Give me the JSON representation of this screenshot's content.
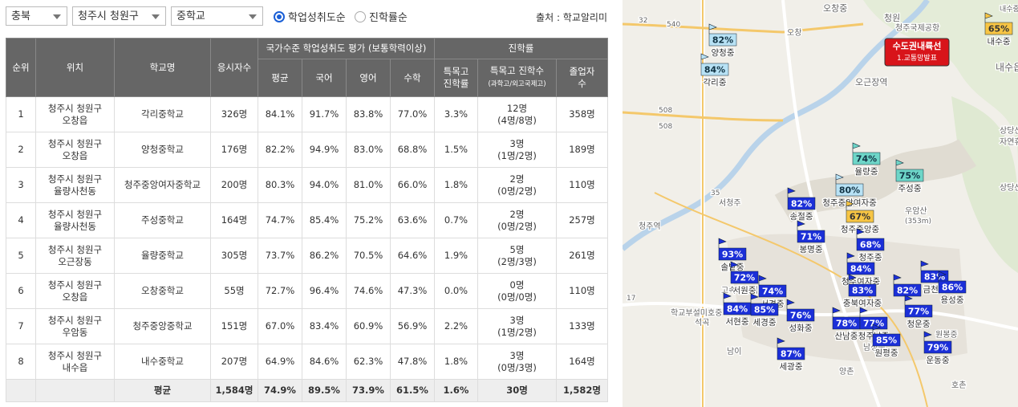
{
  "filters": {
    "region": "충북",
    "district": "청주시 청원구",
    "level": "중학교"
  },
  "sort_options": [
    {
      "label": "학업성취도순",
      "selected": true
    },
    {
      "label": "진학률순",
      "selected": false
    }
  ],
  "source": "출처 : 학교알리미",
  "table": {
    "head": {
      "rank": "순위",
      "location": "위치",
      "school": "학교명",
      "takers": "응시자수",
      "group_achievement": "국가수준 학업성취도 평가 (보통학력이상)",
      "avg": "평균",
      "korean": "국어",
      "english": "영어",
      "math": "수학",
      "group_admission": "진학률",
      "special_rate": "특목고\n진학률",
      "special_count": "특목고 진학수",
      "special_count_note": "(과학고/외고국제고)",
      "graduates": "졸업자\n수"
    },
    "rows": [
      [
        "1",
        "청주시 청원구\n오창읍",
        "각리중학교",
        "326명",
        "84.1%",
        "91.7%",
        "83.8%",
        "77.0%",
        "3.3%",
        "12명\n(4명/8명)",
        "358명"
      ],
      [
        "2",
        "청주시 청원구\n오창읍",
        "양청중학교",
        "176명",
        "82.2%",
        "94.9%",
        "83.0%",
        "68.8%",
        "1.5%",
        "3명\n(1명/2명)",
        "189명"
      ],
      [
        "3",
        "청주시 청원구\n율량사천동",
        "청주중앙여자중학교",
        "200명",
        "80.3%",
        "94.0%",
        "81.0%",
        "66.0%",
        "1.8%",
        "2명\n(0명/2명)",
        "110명"
      ],
      [
        "4",
        "청주시 청원구\n율량사천동",
        "주성중학교",
        "164명",
        "74.7%",
        "85.4%",
        "75.2%",
        "63.6%",
        "0.7%",
        "2명\n(0명/2명)",
        "257명"
      ],
      [
        "5",
        "청주시 청원구\n오근장동",
        "율량중학교",
        "305명",
        "73.7%",
        "86.2%",
        "70.5%",
        "64.6%",
        "1.9%",
        "5명\n(2명/3명)",
        "261명"
      ],
      [
        "6",
        "청주시 청원구\n오창읍",
        "오창중학교",
        "55명",
        "72.7%",
        "96.4%",
        "74.6%",
        "47.3%",
        "0.0%",
        "0명\n(0명/0명)",
        "110명"
      ],
      [
        "7",
        "청주시 청원구\n우암동",
        "청주중앙중학교",
        "151명",
        "67.0%",
        "83.4%",
        "60.9%",
        "56.9%",
        "2.2%",
        "3명\n(1명/2명)",
        "133명"
      ],
      [
        "8",
        "청주시 청원구\n내수읍",
        "내수중학교",
        "207명",
        "64.9%",
        "84.6%",
        "62.3%",
        "47.8%",
        "1.8%",
        "3명\n(0명/3명)",
        "164명"
      ]
    ],
    "footer": {
      "label": "평균",
      "values": [
        "1,584명",
        "74.9%",
        "89.5%",
        "73.9%",
        "61.5%",
        "1.6%",
        "30명",
        "1,582명"
      ]
    }
  },
  "map": {
    "notice": {
      "line1": "수도권내륙선",
      "line2": "1.교통망발표"
    },
    "markers": [
      {
        "pct": "82%",
        "name": "양청중",
        "style": "light"
      },
      {
        "pct": "84%",
        "name": "각리중",
        "style": "light"
      },
      {
        "pct": "65%",
        "name": "내수중",
        "style": "yellow"
      },
      {
        "pct": "74%",
        "name": "율량중",
        "style": "teal"
      },
      {
        "pct": "75%",
        "name": "주성중",
        "style": "teal"
      },
      {
        "pct": "80%",
        "name": "청주중앙여자중",
        "style": "light"
      },
      {
        "pct": "67%",
        "name": "청주중앙중",
        "style": "yellow"
      },
      {
        "pct": "82%",
        "name": "송절중",
        "style": "blue"
      },
      {
        "pct": "71%",
        "name": "봉명중",
        "style": "blue"
      },
      {
        "pct": "68%",
        "name": "청주중",
        "style": "blue"
      },
      {
        "pct": "93%",
        "name": "솔밭중",
        "style": "blue"
      },
      {
        "pct": "72%",
        "name": "서원중",
        "style": "blue"
      },
      {
        "pct": "74%",
        "name": "서경중",
        "style": "blue"
      },
      {
        "pct": "84%",
        "name": "서현중",
        "style": "blue"
      },
      {
        "pct": "85%",
        "name": "세경중",
        "style": "blue"
      },
      {
        "pct": "76%",
        "name": "성화중",
        "style": "blue"
      },
      {
        "pct": "84%",
        "name": "청주여자중",
        "style": "blue"
      },
      {
        "pct": "83%",
        "name": "충북여자중",
        "style": "blue"
      },
      {
        "pct": "82%",
        "name": "",
        "style": "blue"
      },
      {
        "pct": "83%",
        "name": "금천중",
        "style": "blue"
      },
      {
        "pct": "86%",
        "name": "용성중",
        "style": "blue"
      },
      {
        "pct": "77%",
        "name": "청운중",
        "style": "blue"
      },
      {
        "pct": "78%",
        "name": "산남중",
        "style": "blue"
      },
      {
        "pct": "77%",
        "name": "청주남중",
        "style": "blue"
      },
      {
        "pct": "85%",
        "name": "원평중",
        "style": "blue"
      },
      {
        "pct": "79%",
        "name": "운동중",
        "style": "blue"
      },
      {
        "pct": "87%",
        "name": "세광중",
        "style": "blue"
      }
    ],
    "places": [
      "오창중",
      "청원",
      "청주국제공항",
      "오창",
      "오근장역",
      "내수중",
      "내수읍",
      "상당산성",
      "자연휴양림",
      "상당산성",
      "서청주",
      "청주역",
      "우암산",
      "(353m)",
      "고속버스터미널",
      "학교부설미호중",
      "석곡",
      "남이",
      "양촌",
      "호촌",
      "남성중",
      "원봉중",
      "540",
      "508",
      "508",
      "32",
      "35",
      "17"
    ]
  }
}
